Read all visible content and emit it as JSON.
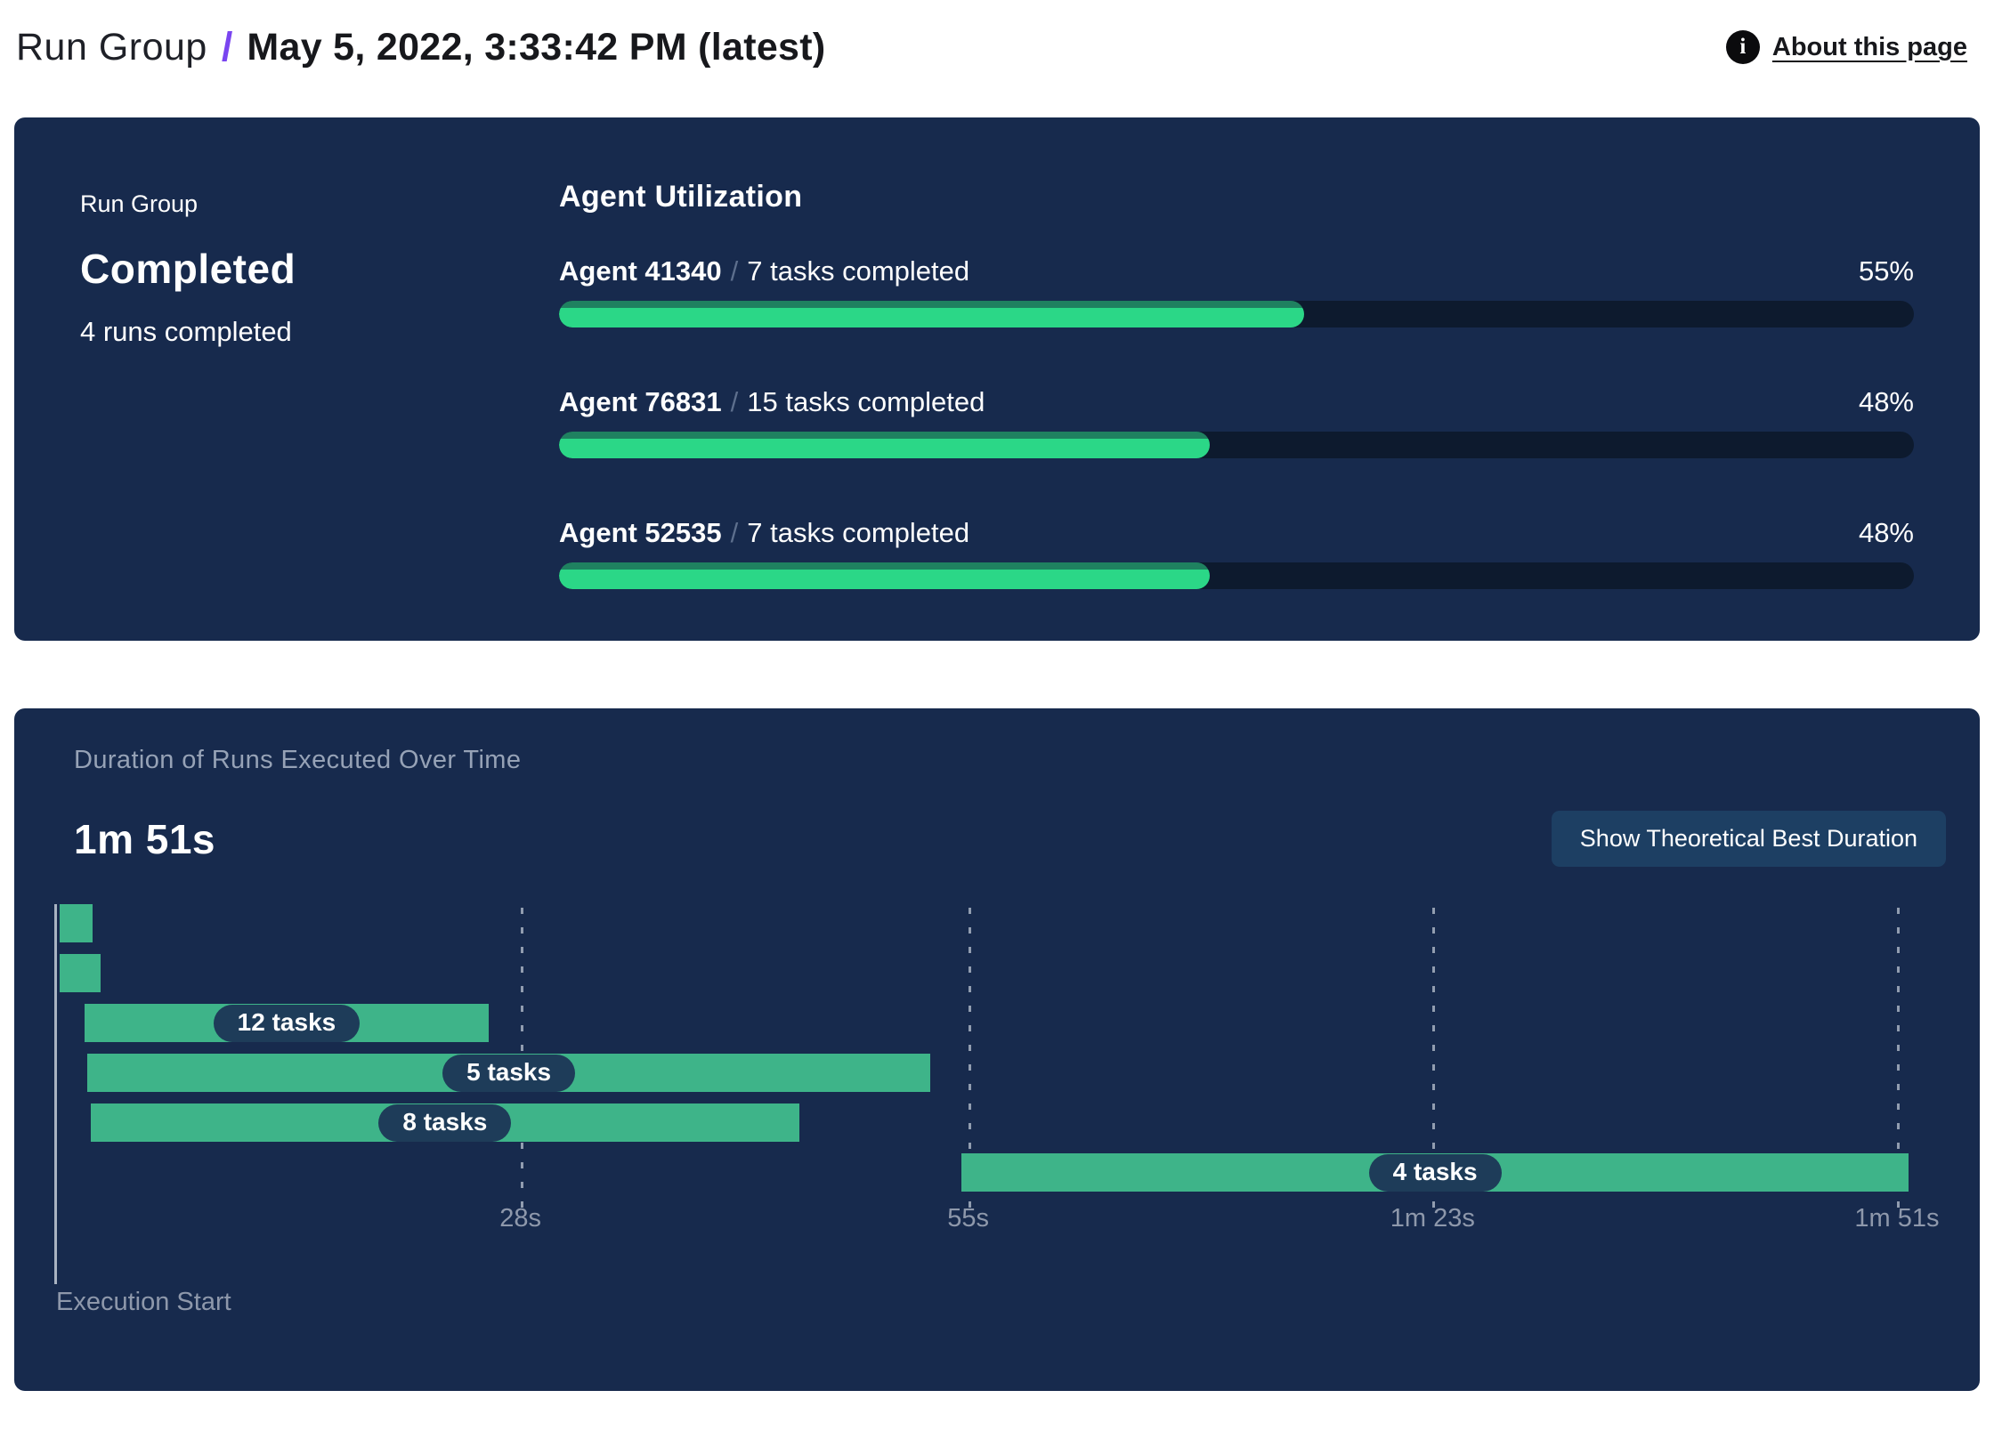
{
  "header": {
    "breadcrumb_root": "Run Group",
    "separator": "/",
    "title": "May 5, 2022, 3:33:42 PM (latest)",
    "about_link": "About this page",
    "info_icon_glyph": "i"
  },
  "colors": {
    "panel_bg": "#172a4d",
    "accent_purple": "#7a45f0",
    "utilization_fill": "#2bd787",
    "utilization_fill_edge": "#1f8160",
    "utilization_track": "#0d1a2e",
    "gantt_bar_green": "#3eb489",
    "task_pill_bg": "#1e3c59",
    "muted_text": "#8e98ab",
    "button_bg": "#1d3f63"
  },
  "status_panel": {
    "label": "Run Group",
    "status": "Completed",
    "runs_summary": "4 runs completed"
  },
  "agent_utilization": {
    "title": "Agent Utilization",
    "separator": "/",
    "agents": [
      {
        "name": "Agent 41340",
        "tasks": "7 tasks completed",
        "percent_label": "55%",
        "percent_value": 55
      },
      {
        "name": "Agent 76831",
        "tasks": "15 tasks completed",
        "percent_label": "48%",
        "percent_value": 48
      },
      {
        "name": "Agent 52535",
        "tasks": "7 tasks completed",
        "percent_label": "48%",
        "percent_value": 48
      }
    ]
  },
  "duration_panel": {
    "title": "Duration of Runs Executed Over Time",
    "total_duration": "1m 51s",
    "button_label": "Show Theoretical Best Duration",
    "execution_start_label": "Execution Start"
  },
  "chart_data": {
    "type": "bar",
    "subtype": "horizontal-gantt",
    "title": "Duration of Runs Executed Over Time",
    "xlabel": "Execution Start",
    "ylabel": "",
    "x_axis": {
      "unit": "seconds",
      "range": [
        0,
        111
      ],
      "plot_max_s": 111.7,
      "grid": "dashed-vertical",
      "ticks": [
        {
          "label": "28s",
          "value": 28
        },
        {
          "label": "55s",
          "value": 55
        },
        {
          "label": "1m 23s",
          "value": 83
        },
        {
          "label": "1m 51s",
          "value": 111
        }
      ]
    },
    "runs": [
      {
        "label": "",
        "start_s": 0.2,
        "end_s": 2.2
      },
      {
        "label": "",
        "start_s": 0.2,
        "end_s": 2.7
      },
      {
        "label": "12 tasks",
        "start_s": 1.7,
        "end_s": 26.1
      },
      {
        "label": "5 tasks",
        "start_s": 1.9,
        "end_s": 52.7
      },
      {
        "label": "8 tasks",
        "start_s": 2.1,
        "end_s": 44.8
      },
      {
        "label": "4 tasks",
        "start_s": 54.6,
        "end_s": 111.7
      }
    ]
  }
}
